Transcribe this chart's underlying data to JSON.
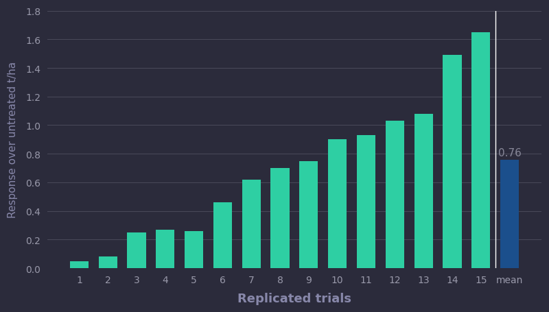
{
  "trial_labels": [
    "1",
    "2",
    "3",
    "4",
    "5",
    "6",
    "7",
    "8",
    "9",
    "10",
    "11",
    "12",
    "13",
    "14",
    "15",
    "mean"
  ],
  "values": [
    0.05,
    0.08,
    0.25,
    0.27,
    0.26,
    0.46,
    0.62,
    0.7,
    0.75,
    0.9,
    0.93,
    1.03,
    1.08,
    1.49,
    1.65,
    0.76
  ],
  "bar_colors": [
    "#2ecfa3",
    "#2ecfa3",
    "#2ecfa3",
    "#2ecfa3",
    "#2ecfa3",
    "#2ecfa3",
    "#2ecfa3",
    "#2ecfa3",
    "#2ecfa3",
    "#2ecfa3",
    "#2ecfa3",
    "#2ecfa3",
    "#2ecfa3",
    "#2ecfa3",
    "#2ecfa3",
    "#1b4f8c"
  ],
  "mean_value_label": "0.76",
  "xlabel": "Replicated trials",
  "ylabel": "Response over untreated t/ha",
  "ylim": [
    0,
    1.8
  ],
  "yticks": [
    0.0,
    0.2,
    0.4,
    0.6,
    0.8,
    1.0,
    1.2,
    1.4,
    1.6,
    1.8
  ],
  "background_color": "#2b2b3b",
  "plot_bg_color": "#2b2b3b",
  "grid_color": "#4a4a5a",
  "text_color": "#9999aa",
  "axis_label_color": "#8888aa",
  "mean_line_color": "#ffffff",
  "mean_label_color": "#888899",
  "xlabel_fontsize": 13,
  "ylabel_fontsize": 11,
  "tick_fontsize": 10,
  "mean_label_fontsize": 11
}
